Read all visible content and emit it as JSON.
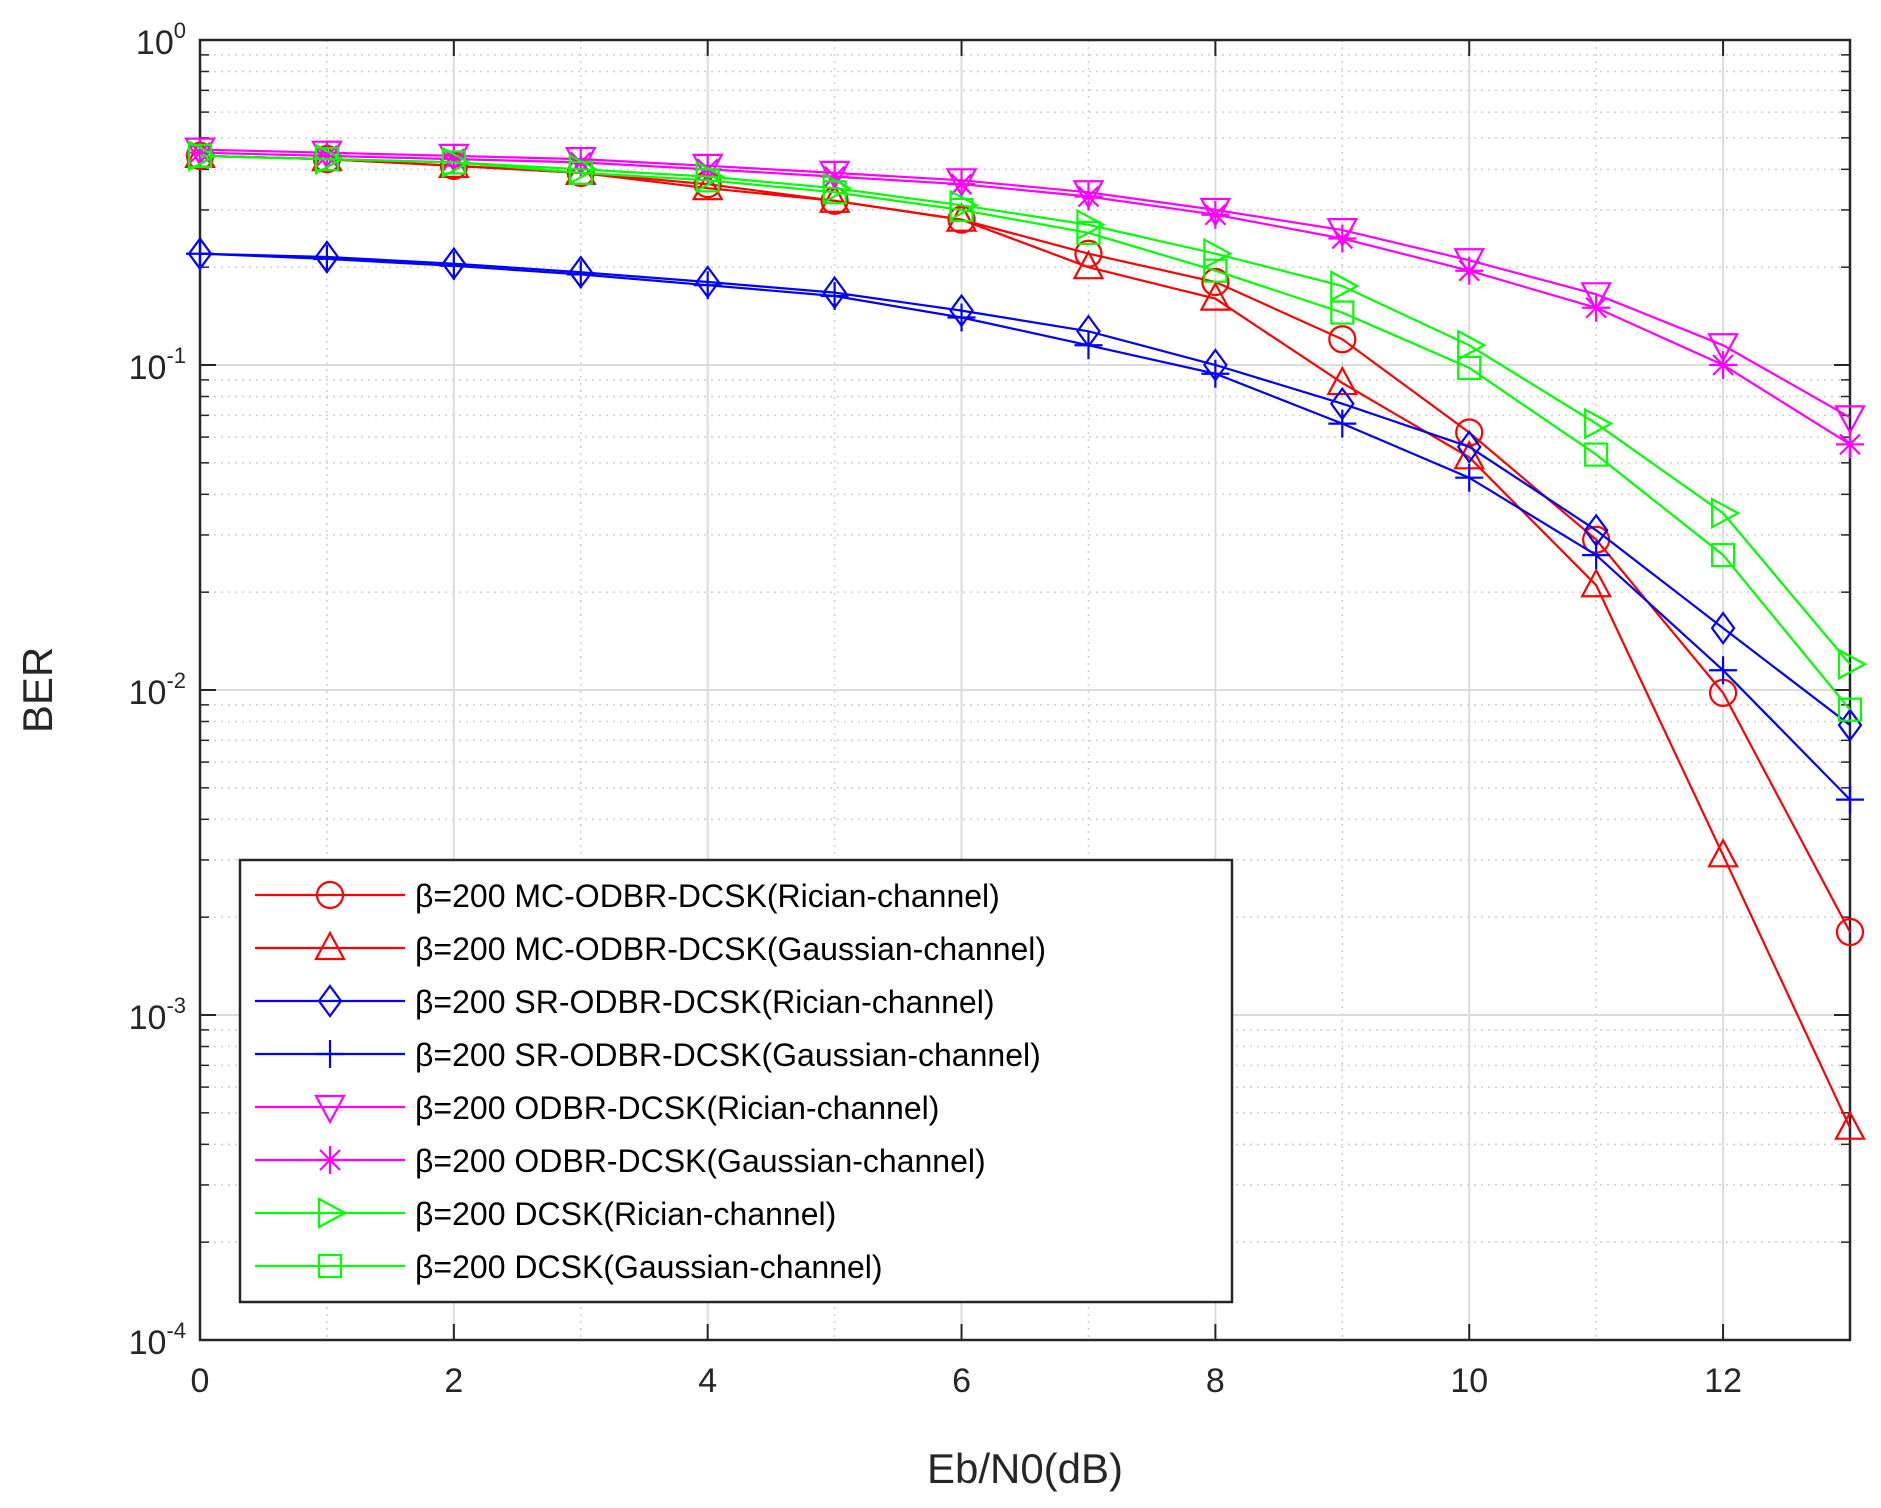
{
  "chart_data": {
    "type": "line",
    "xlabel": "Eb/N0(dB)",
    "ylabel": "BER",
    "xlim": [
      0,
      13
    ],
    "ylim": [
      0.0001,
      1
    ],
    "yscale": "log",
    "grid": true,
    "x_ticks": [
      0,
      2,
      4,
      6,
      8,
      10,
      12
    ],
    "x_tick_labels": [
      "0",
      "2",
      "4",
      "6",
      "8",
      "10",
      "12"
    ],
    "y_ticks": [
      {
        "base": "10",
        "exp": "0"
      },
      {
        "base": "10",
        "exp": "-1"
      },
      {
        "base": "10",
        "exp": "-2"
      },
      {
        "base": "10",
        "exp": "-3"
      },
      {
        "base": "10",
        "exp": "-4"
      }
    ],
    "legend_position": "bottom-left",
    "x": [
      0,
      1,
      2,
      3,
      4,
      5,
      6,
      7,
      8,
      9,
      10,
      11,
      12,
      13
    ],
    "series": [
      {
        "name": "β=200 MC-ODBR-DCSK(Rician-channel)",
        "color": "#ff0000",
        "marker": "circle",
        "values": [
          0.44,
          0.43,
          0.41,
          0.39,
          0.36,
          0.32,
          0.28,
          0.22,
          0.18,
          0.12,
          0.062,
          0.029,
          0.0098,
          0.0018
        ]
      },
      {
        "name": "β=200 MC-ODBR-DCSK(Gaussian-channel)",
        "color": "#ff0000",
        "marker": "triangle-up",
        "values": [
          0.44,
          0.43,
          0.41,
          0.39,
          0.35,
          0.32,
          0.28,
          0.2,
          0.16,
          0.088,
          0.052,
          0.021,
          0.0031,
          0.00045
        ]
      },
      {
        "name": "β=200 SR-ODBR-DCSK(Rician-channel)",
        "color": "#0000ff",
        "marker": "diamond",
        "values": [
          0.22,
          0.215,
          0.205,
          0.193,
          0.18,
          0.167,
          0.147,
          0.127,
          0.1,
          0.076,
          0.056,
          0.031,
          0.0155,
          0.0078
        ]
      },
      {
        "name": "β=200 SR-ODBR-DCSK(Gaussian-channel)",
        "color": "#0000ff",
        "marker": "plus",
        "values": [
          0.22,
          0.212,
          0.202,
          0.19,
          0.176,
          0.163,
          0.14,
          0.115,
          0.094,
          0.066,
          0.045,
          0.026,
          0.0115,
          0.0046
        ]
      },
      {
        "name": "β=200 ODBR-DCSK(Rician-channel)",
        "color": "#ff00ff",
        "marker": "triangle-down",
        "values": [
          0.46,
          0.45,
          0.44,
          0.43,
          0.41,
          0.39,
          0.37,
          0.34,
          0.3,
          0.26,
          0.21,
          0.165,
          0.115,
          0.069
        ]
      },
      {
        "name": "β=200 ODBR-DCSK(Gaussian-channel)",
        "color": "#ff00ff",
        "marker": "asterisk",
        "values": [
          0.45,
          0.44,
          0.43,
          0.42,
          0.4,
          0.38,
          0.36,
          0.33,
          0.29,
          0.245,
          0.195,
          0.15,
          0.1,
          0.057
        ]
      },
      {
        "name": "β=200 DCSK(Rician-channel)",
        "color": "#00ff00",
        "marker": "triangle-right",
        "values": [
          0.44,
          0.43,
          0.42,
          0.4,
          0.38,
          0.35,
          0.31,
          0.27,
          0.22,
          0.175,
          0.115,
          0.066,
          0.035,
          0.012
        ]
      },
      {
        "name": "β=200 DCSK(Gaussian-channel)",
        "color": "#00ff00",
        "marker": "square",
        "values": [
          0.44,
          0.43,
          0.42,
          0.39,
          0.37,
          0.34,
          0.3,
          0.255,
          0.195,
          0.145,
          0.098,
          0.053,
          0.026,
          0.0087
        ]
      }
    ]
  }
}
